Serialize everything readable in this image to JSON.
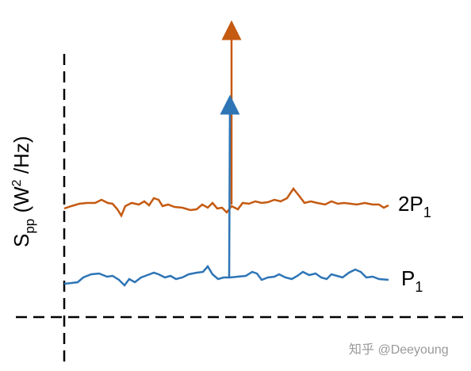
{
  "axis_label": {
    "symbol": "S",
    "subscript": "pp",
    "unit_open": " (W",
    "superscript": "2",
    "unit_close": " /Hz)"
  },
  "curves": [
    {
      "label": "2P",
      "label_subscript": "1"
    },
    {
      "label": "P",
      "label_subscript": "1"
    }
  ],
  "watermark": "知乎 @Deeyoung"
}
